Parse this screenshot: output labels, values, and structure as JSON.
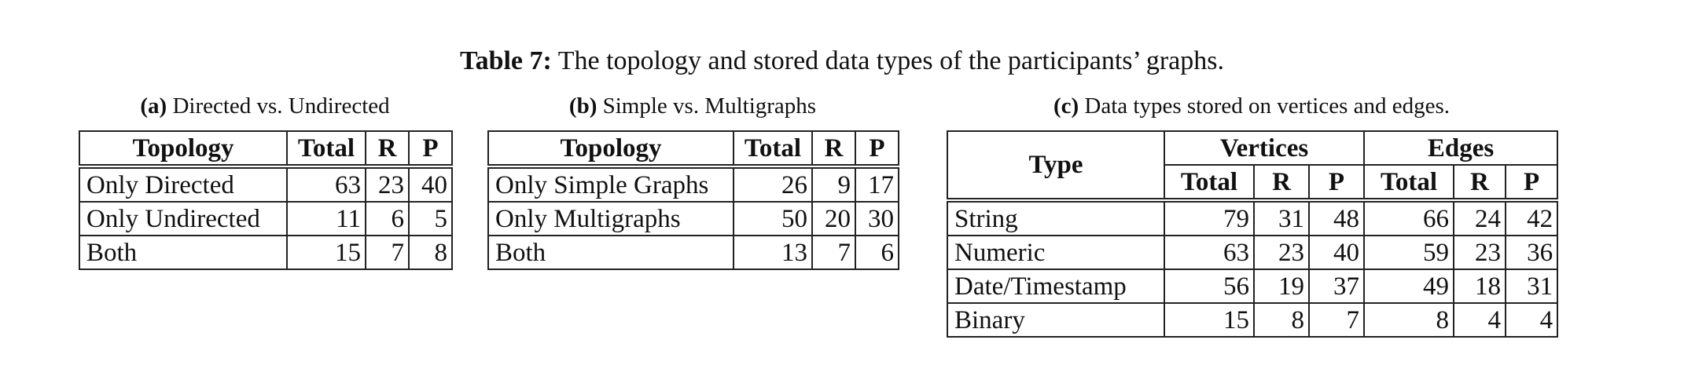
{
  "caption": {
    "label": "Table 7:",
    "text": "The topology and stored data types of the participants’ graphs."
  },
  "table_a": {
    "sub_label": "(a)",
    "sub_text": "Directed vs. Undirected",
    "headers": [
      "Topology",
      "Total",
      "R",
      "P"
    ],
    "rows": [
      [
        "Only Directed",
        "63",
        "23",
        "40"
      ],
      [
        "Only Undirected",
        "11",
        "6",
        "5"
      ],
      [
        "Both",
        "15",
        "7",
        "8"
      ]
    ]
  },
  "table_b": {
    "sub_label": "(b)",
    "sub_text": "Simple vs. Multigraphs",
    "headers": [
      "Topology",
      "Total",
      "R",
      "P"
    ],
    "rows": [
      [
        "Only Simple Graphs",
        "26",
        "9",
        "17"
      ],
      [
        "Only Multigraphs",
        "50",
        "20",
        "30"
      ],
      [
        "Both",
        "13",
        "7",
        "6"
      ]
    ]
  },
  "table_c": {
    "sub_label": "(c)",
    "sub_text": "Data types stored on vertices and edges.",
    "type_header": "Type",
    "group_headers": [
      "Vertices",
      "Edges"
    ],
    "headers": [
      "Total",
      "R",
      "P",
      "Total",
      "R",
      "P"
    ],
    "rows": [
      [
        "String",
        "79",
        "31",
        "48",
        "66",
        "24",
        "42"
      ],
      [
        "Numeric",
        "63",
        "23",
        "40",
        "59",
        "23",
        "36"
      ],
      [
        "Date/Timestamp",
        "56",
        "19",
        "37",
        "49",
        "18",
        "31"
      ],
      [
        "Binary",
        "15",
        "8",
        "7",
        "8",
        "4",
        "4"
      ]
    ]
  }
}
